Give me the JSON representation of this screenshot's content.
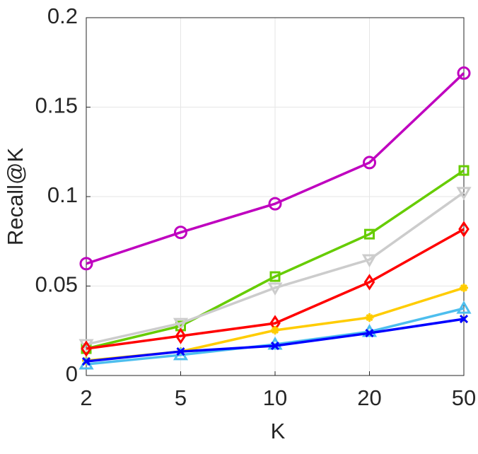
{
  "chart_data": {
    "type": "line",
    "xlabel": "K",
    "ylabel": "Recall@K",
    "categories": [
      2,
      5,
      10,
      20,
      50
    ],
    "ylim": [
      0,
      0.2
    ],
    "yticks": [
      0,
      0.05,
      0.1,
      0.15,
      0.2
    ],
    "grid": true,
    "series": [
      {
        "color": "#bf00bf",
        "marker": "circle",
        "values": [
          0.0625,
          0.08,
          0.096,
          0.119,
          0.169
        ]
      },
      {
        "color": "#66cc00",
        "marker": "square",
        "values": [
          0.015,
          0.0277,
          0.0553,
          0.079,
          0.1146
        ]
      },
      {
        "color": "#cccccc",
        "marker": "triangle-down",
        "values": [
          0.0174,
          0.0292,
          0.049,
          0.0648,
          0.1024
        ]
      },
      {
        "color": "#ff0000",
        "marker": "diamond",
        "values": [
          0.015,
          0.0221,
          0.0292,
          0.0522,
          0.0818
        ]
      },
      {
        "color": "#ffcc00",
        "marker": "star",
        "values": [
          0.0083,
          0.0134,
          0.0253,
          0.0324,
          0.049
        ]
      },
      {
        "color": "#4dbeee",
        "marker": "triangle-up",
        "values": [
          0.0063,
          0.0115,
          0.0174,
          0.0245,
          0.0375
        ]
      },
      {
        "color": "#0000ff",
        "marker": "x",
        "values": [
          0.0079,
          0.0134,
          0.0166,
          0.0237,
          0.0316
        ]
      }
    ]
  }
}
